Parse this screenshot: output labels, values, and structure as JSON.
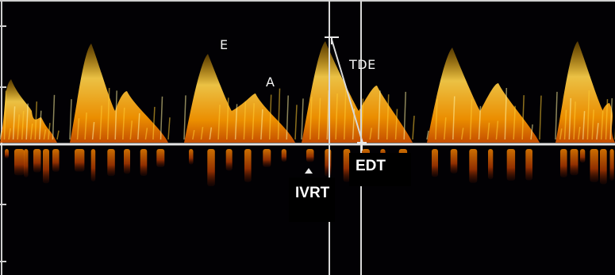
{
  "image": {
    "description_labels": {
      "e_wave": "E",
      "a_wave": "A",
      "tde": "TDE",
      "edt": "EDT",
      "ivrt": "IVRT"
    },
    "colors": {
      "background": "#020104",
      "signal_core": "#fff3a0",
      "signal_mid": "#ffb400",
      "signal_edge": "#c04000",
      "baseline": "#e6e6e6"
    }
  }
}
